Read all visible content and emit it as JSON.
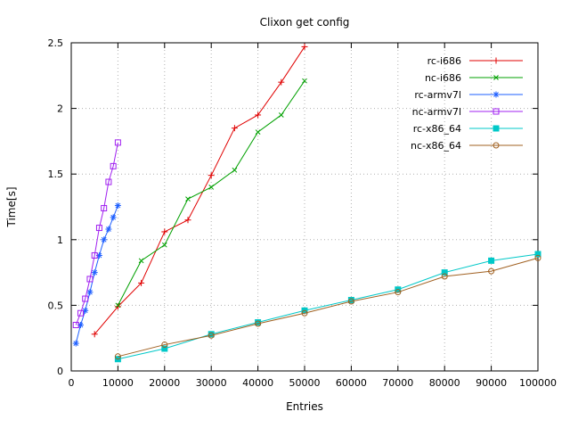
{
  "chart_data": {
    "type": "line",
    "title": "Clixon get config",
    "xlabel": "Entries",
    "ylabel": "Time[s]",
    "xlim": [
      0,
      100000
    ],
    "ylim": [
      0,
      2.5
    ],
    "xticks": [
      0,
      10000,
      20000,
      30000,
      40000,
      50000,
      60000,
      70000,
      80000,
      90000,
      100000
    ],
    "yticks": [
      0,
      0.5,
      1,
      1.5,
      2,
      2.5
    ],
    "grid": true,
    "legend_position": "top-right",
    "series": [
      {
        "name": "rc-i686",
        "color": "#e00000",
        "marker": "plus",
        "x": [
          5000,
          10000,
          15000,
          20000,
          25000,
          30000,
          35000,
          40000,
          45000,
          50000
        ],
        "y": [
          0.28,
          0.49,
          0.67,
          1.06,
          1.15,
          1.49,
          1.85,
          1.95,
          2.2,
          2.47
        ]
      },
      {
        "name": "nc-i686",
        "color": "#00a000",
        "marker": "cross",
        "x": [
          10000,
          15000,
          20000,
          25000,
          30000,
          35000,
          40000,
          45000,
          50000
        ],
        "y": [
          0.5,
          0.84,
          0.96,
          1.31,
          1.4,
          1.53,
          1.82,
          1.95,
          2.21
        ]
      },
      {
        "name": "rc-armv7l",
        "color": "#1e5fff",
        "marker": "asterisk",
        "x": [
          1000,
          2000,
          3000,
          4000,
          5000,
          6000,
          7000,
          8000,
          9000,
          10000
        ],
        "y": [
          0.21,
          0.35,
          0.46,
          0.6,
          0.75,
          0.88,
          1.0,
          1.08,
          1.17,
          1.26
        ]
      },
      {
        "name": "nc-armv7l",
        "color": "#a020f0",
        "marker": "square-open",
        "x": [
          1000,
          2000,
          3000,
          4000,
          5000,
          6000,
          7000,
          8000,
          9000,
          10000
        ],
        "y": [
          0.35,
          0.44,
          0.55,
          0.7,
          0.88,
          1.09,
          1.24,
          1.44,
          1.56,
          1.74
        ]
      },
      {
        "name": "rc-x86_64",
        "color": "#00c8c8",
        "marker": "square-filled",
        "x": [
          10000,
          20000,
          30000,
          40000,
          50000,
          60000,
          70000,
          80000,
          90000,
          100000
        ],
        "y": [
          0.09,
          0.17,
          0.28,
          0.37,
          0.46,
          0.54,
          0.62,
          0.75,
          0.84,
          0.89
        ]
      },
      {
        "name": "nc-x86_64",
        "color": "#a06020",
        "marker": "circle-open",
        "x": [
          10000,
          20000,
          30000,
          40000,
          50000,
          60000,
          70000,
          80000,
          90000,
          100000
        ],
        "y": [
          0.11,
          0.2,
          0.27,
          0.36,
          0.44,
          0.53,
          0.6,
          0.72,
          0.76,
          0.86
        ]
      }
    ]
  },
  "colors": {
    "grid": "#b0b0b0",
    "border": "#000000",
    "background": "#ffffff"
  }
}
